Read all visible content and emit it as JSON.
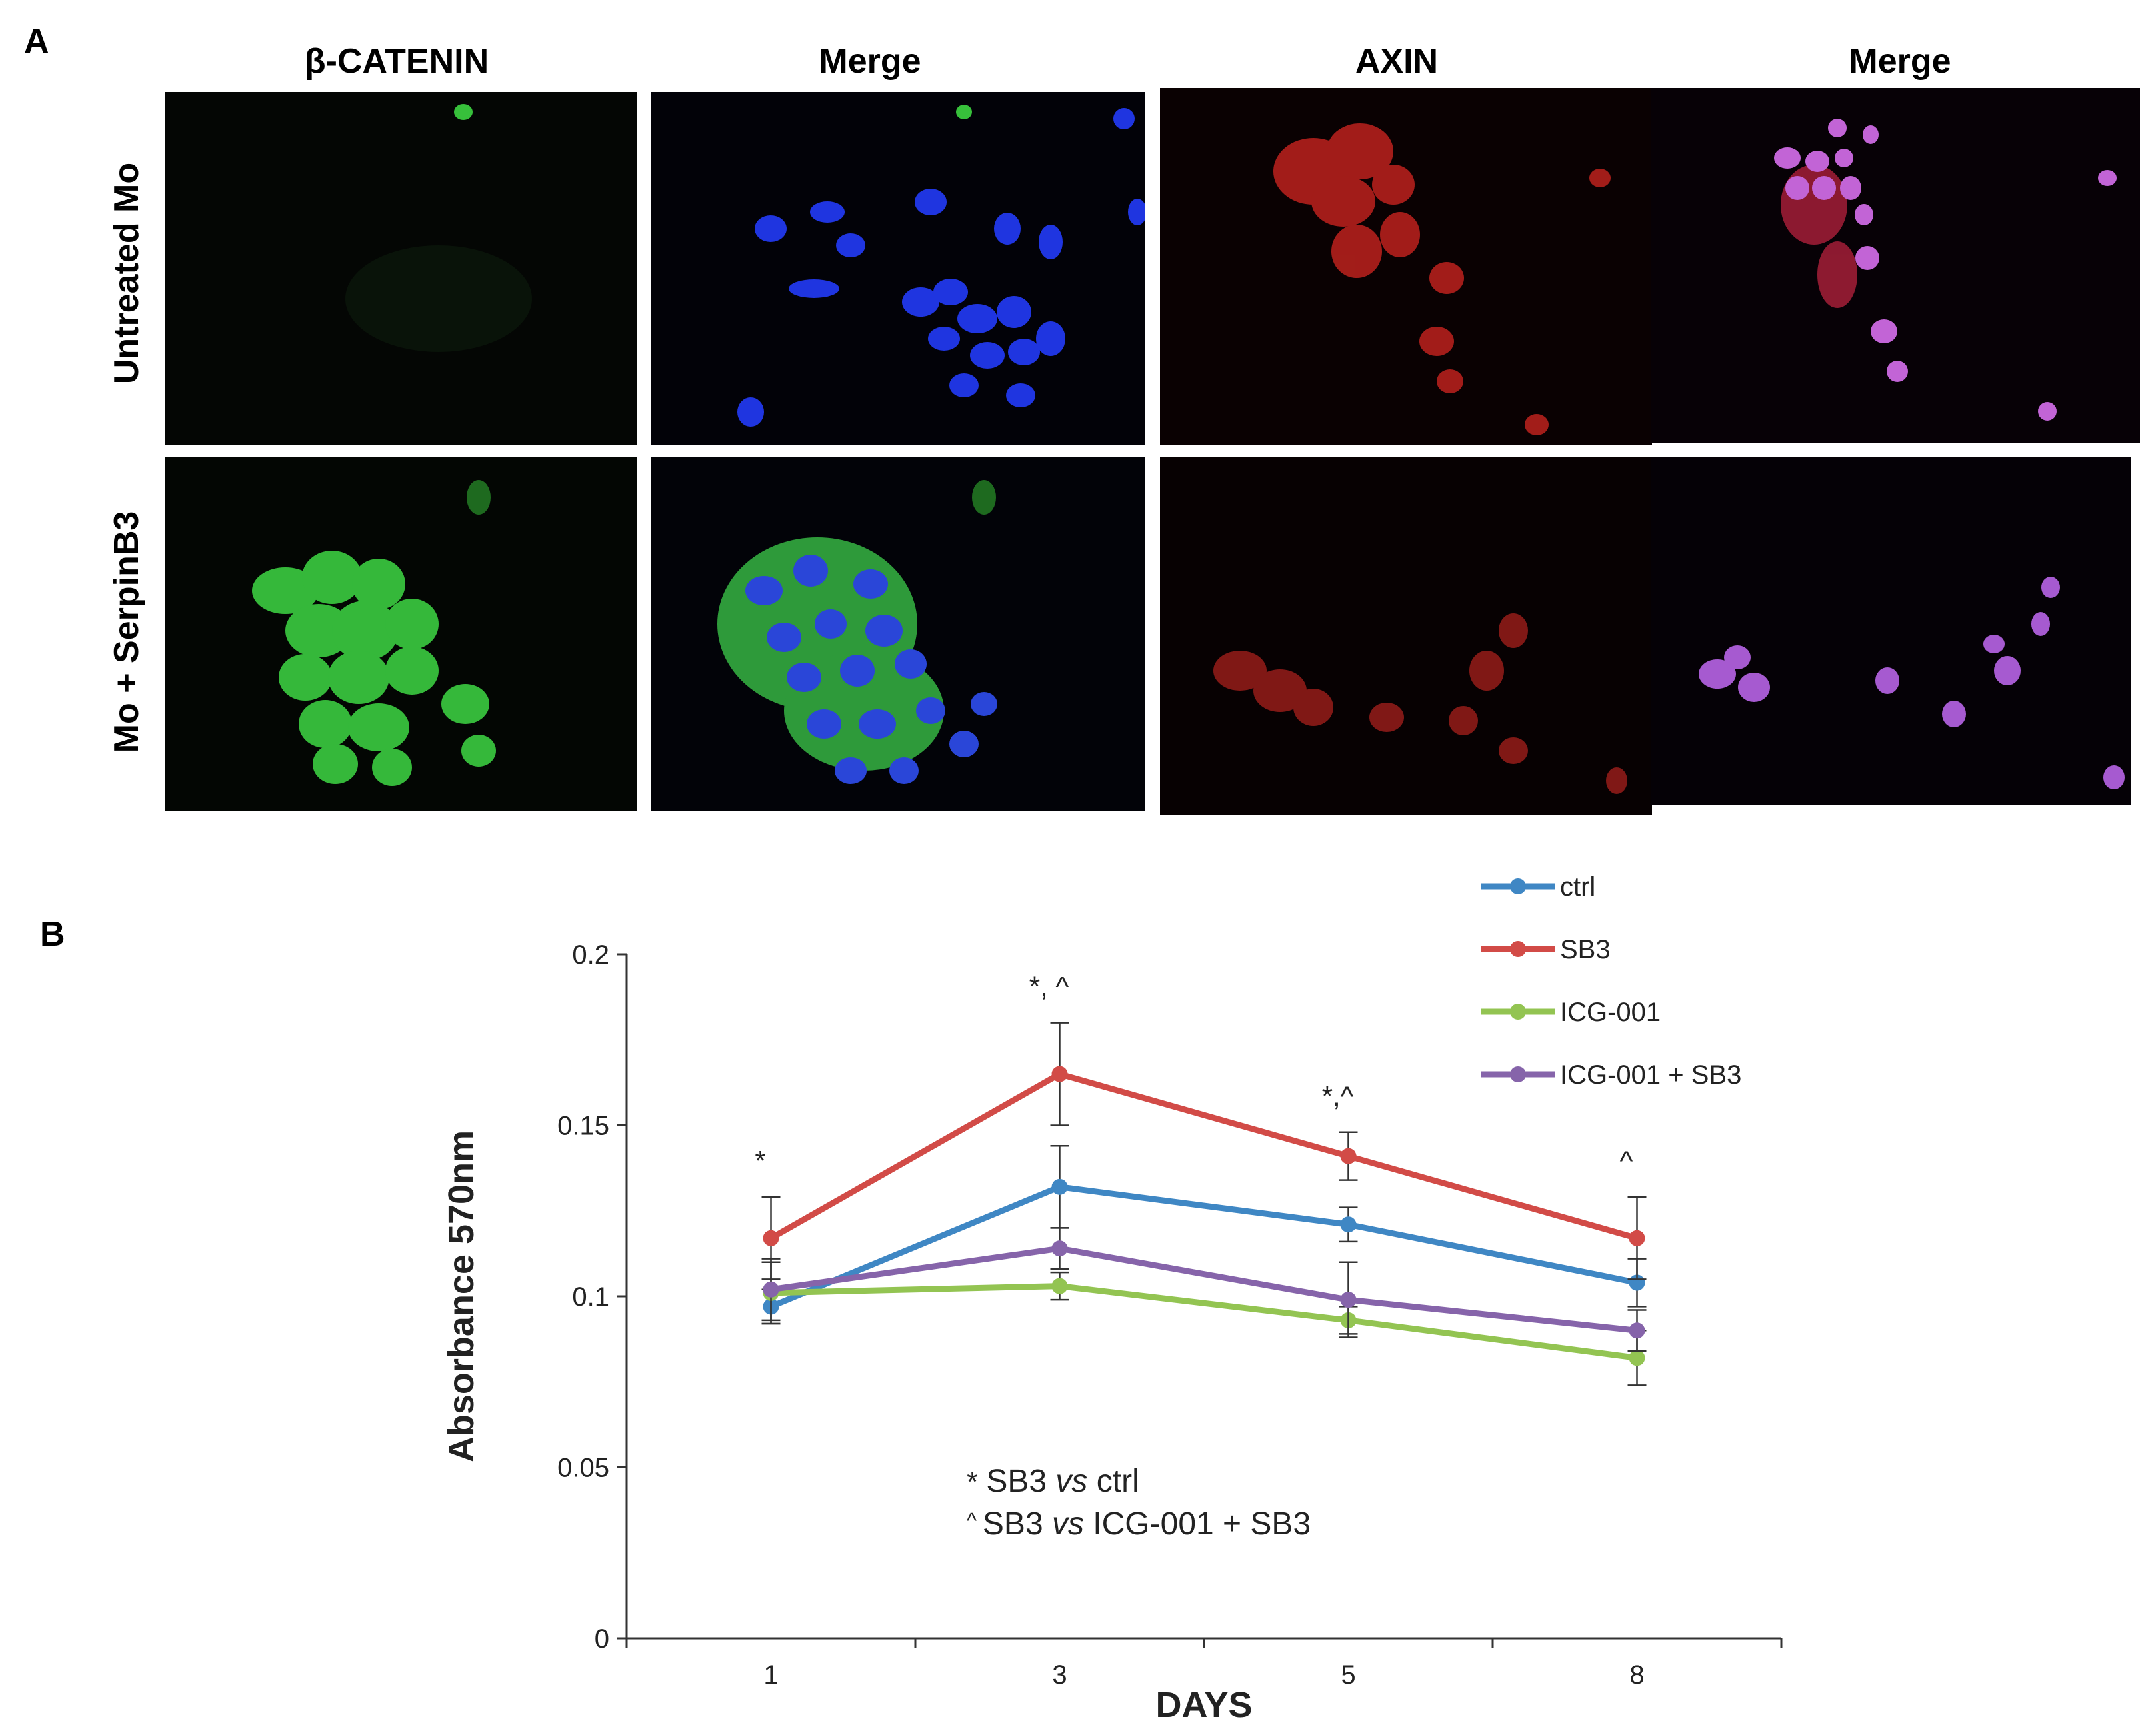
{
  "panels": {
    "a_label": "A",
    "b_label": "B"
  },
  "micrographs": {
    "columns": [
      "β-CATENIN",
      "Merge",
      "AXIN",
      "Merge"
    ],
    "rows": [
      "Untreated Mo",
      "Mo + SerpinB3"
    ],
    "colors": {
      "beta_catenin": "#36c23a",
      "dapi": "#1f35e0",
      "axin": "#d8231e",
      "merge_axin_dapi": "#c060d8"
    }
  },
  "chart_data": {
    "type": "line",
    "title": "",
    "xlabel": "DAYS",
    "ylabel": "Absorbance 570nm",
    "categories": [
      "1",
      "3",
      "5",
      "8"
    ],
    "ylim": [
      0,
      0.2
    ],
    "yticks": [
      "0",
      "0.05",
      "0.1",
      "0.15",
      "0.2"
    ],
    "grid": false,
    "legend_position": "top-right",
    "series": [
      {
        "name": "ctrl",
        "color": "#3f87c4",
        "values": [
          0.097,
          0.132,
          0.121,
          0.104
        ],
        "errors": [
          0.005,
          0.012,
          0.005,
          0.007
        ]
      },
      {
        "name": "SB3",
        "color": "#d24b47",
        "values": [
          0.117,
          0.165,
          0.141,
          0.117
        ],
        "errors": [
          0.012,
          0.015,
          0.007,
          0.012
        ]
      },
      {
        "name": "ICG-001",
        "color": "#93c452",
        "values": [
          0.101,
          0.103,
          0.093,
          0.082
        ],
        "errors": [
          0.009,
          0.004,
          0.004,
          0.008
        ]
      },
      {
        "name": "ICG-001 + SB3",
        "color": "#8664aa",
        "values": [
          0.102,
          0.114,
          0.099,
          0.09
        ],
        "errors": [
          0.009,
          0.006,
          0.011,
          0.006
        ]
      }
    ],
    "significance_marks": [
      "*",
      "*, ^",
      "*,^",
      "^"
    ],
    "notes": [
      {
        "symbol": "*",
        "parts": [
          "SB3 ",
          "vs",
          " ctrl"
        ]
      },
      {
        "symbol": "^",
        "parts": [
          "SB3 ",
          "vs",
          " ICG-001  + SB3"
        ]
      }
    ]
  }
}
